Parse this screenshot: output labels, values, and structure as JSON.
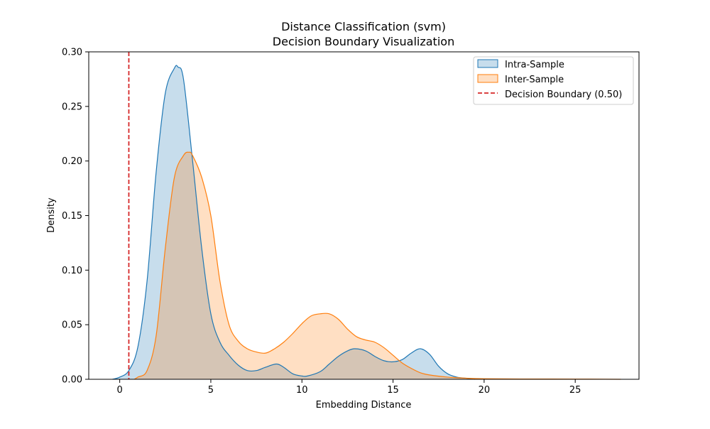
{
  "chart_data": {
    "type": "area",
    "title": "Distance Classification (svm)",
    "subtitle": "Decision Boundary Visualization",
    "xlabel": "Embedding Distance",
    "ylabel": "Density",
    "xlim": [
      -1.7,
      28.5
    ],
    "ylim": [
      0,
      0.3
    ],
    "x_ticks": [
      0,
      5,
      10,
      15,
      20,
      25
    ],
    "y_ticks": [
      0.0,
      0.05,
      0.1,
      0.15,
      0.2,
      0.25,
      0.3
    ],
    "x_tick_labels": [
      "0",
      "5",
      "10",
      "15",
      "20",
      "25"
    ],
    "y_tick_labels": [
      "0.00",
      "0.05",
      "0.10",
      "0.15",
      "0.20",
      "0.25",
      "0.30"
    ],
    "grid": false,
    "legend_position": "top-right",
    "series": [
      {
        "name": "Intra-Sample",
        "color": "#1f77b4",
        "x": [
          -0.4,
          0,
          0.5,
          1,
          1.5,
          2,
          2.5,
          3,
          3.2,
          3.5,
          4,
          4.5,
          5,
          5.5,
          6,
          6.5,
          7,
          7.5,
          8,
          8.6,
          9,
          9.5,
          10,
          10.3,
          11,
          11.5,
          12,
          12.5,
          12.9,
          13.5,
          14,
          14.5,
          15,
          15.5,
          16,
          16.5,
          17,
          17.5,
          18,
          18.5,
          19,
          19.5
        ],
        "values": [
          0.0,
          0.002,
          0.008,
          0.03,
          0.09,
          0.19,
          0.262,
          0.285,
          0.286,
          0.275,
          0.2,
          0.12,
          0.06,
          0.034,
          0.022,
          0.013,
          0.008,
          0.008,
          0.011,
          0.014,
          0.011,
          0.005,
          0.003,
          0.003,
          0.007,
          0.014,
          0.021,
          0.026,
          0.028,
          0.026,
          0.021,
          0.017,
          0.016,
          0.018,
          0.024,
          0.028,
          0.023,
          0.012,
          0.005,
          0.002,
          0.001,
          0.0
        ]
      },
      {
        "name": "Inter-Sample",
        "color": "#ff7f0e",
        "x": [
          0.8,
          1,
          1.5,
          2,
          2.5,
          3,
          3.5,
          3.8,
          4,
          4.5,
          5,
          5.5,
          6,
          6.5,
          7,
          7.5,
          8,
          8.5,
          9,
          9.5,
          10,
          10.5,
          11,
          11.5,
          12,
          12.5,
          13,
          13.5,
          14,
          14.5,
          15,
          15.5,
          16,
          16.5,
          17,
          18,
          19,
          20,
          22,
          25,
          27.5
        ],
        "values": [
          0.0,
          0.002,
          0.008,
          0.04,
          0.12,
          0.185,
          0.205,
          0.208,
          0.205,
          0.185,
          0.15,
          0.09,
          0.05,
          0.035,
          0.028,
          0.025,
          0.024,
          0.028,
          0.034,
          0.042,
          0.051,
          0.058,
          0.06,
          0.06,
          0.055,
          0.046,
          0.039,
          0.036,
          0.034,
          0.029,
          0.022,
          0.015,
          0.01,
          0.006,
          0.004,
          0.002,
          0.001,
          0.0005,
          0.0003,
          0.0002,
          0.0
        ]
      }
    ],
    "decision_boundary": {
      "label": "Decision Boundary (0.50)",
      "x": 0.5,
      "color": "#d62728"
    }
  }
}
